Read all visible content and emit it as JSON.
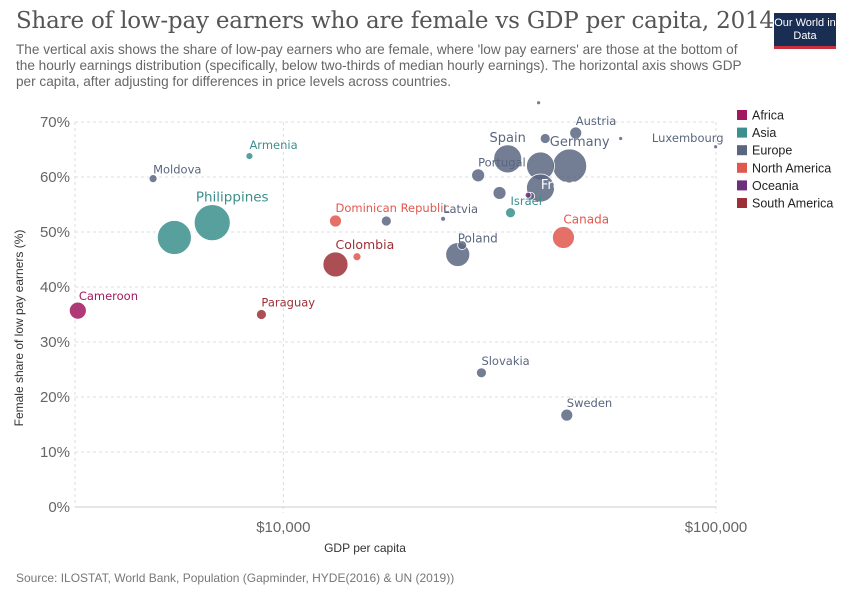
{
  "header": {
    "title": "Share of low-pay earners who are female vs GDP per capita, 2014",
    "subtitle": "The vertical axis shows the share of low-pay earners who are female, where 'low pay earners' are those at the bottom of the hourly earnings distribution (specifically, below two-thirds of median hourly earnings). The horizontal axis shows GDP per capita, after adjusting for differences in price levels across countries.",
    "logo": "Our World in Data"
  },
  "footer": {
    "source": "Source: ILOSTAT, World Bank, Population (Gapminder, HYDE(2016) & UN (2019))"
  },
  "colors": {
    "Africa": "#a2185f",
    "Asia": "#3b8f8c",
    "Europe": "#5a6680",
    "North America": "#e1574e",
    "Oceania": "#6b2f7c",
    "South America": "#9c3036",
    "logo_bg": "#1a2d53",
    "logo_accent": "#c8303e"
  },
  "chart_data": {
    "type": "scatter",
    "title": "Share of low-pay earners who are female vs GDP per capita, 2014",
    "xlabel": "GDP per capita",
    "ylabel": "Female share of low pay earners (%)",
    "x_scale": "log",
    "xlim": [
      3300,
      100000
    ],
    "ylim": [
      0,
      73
    ],
    "x_ticks": [
      {
        "value": 10000,
        "label": "$10,000"
      },
      {
        "value": 100000,
        "label": "$100,000"
      }
    ],
    "y_ticks": [
      {
        "value": 0,
        "label": "0%"
      },
      {
        "value": 10,
        "label": "10%"
      },
      {
        "value": 20,
        "label": "20%"
      },
      {
        "value": 30,
        "label": "30%"
      },
      {
        "value": 40,
        "label": "40%"
      },
      {
        "value": 50,
        "label": "50%"
      },
      {
        "value": 60,
        "label": "60%"
      },
      {
        "value": 70,
        "label": "70%"
      }
    ],
    "grid": true,
    "legend_position": "right",
    "legend": [
      "Africa",
      "Asia",
      "Europe",
      "North America",
      "Oceania",
      "South America"
    ],
    "points": [
      {
        "label": "Cameroon",
        "region": "Africa",
        "x": 3350,
        "y": 35.7,
        "size": 8.5
      },
      {
        "label": "Moldova",
        "region": "Europe",
        "x": 5000,
        "y": 59.7,
        "size": 4
      },
      {
        "label": "",
        "region": "Asia",
        "x": 5600,
        "y": 49.0,
        "size": 17
      },
      {
        "label": "Philippines",
        "region": "Asia",
        "x": 6850,
        "y": 51.7,
        "size": 18
      },
      {
        "label": "Armenia",
        "region": "Asia",
        "x": 8350,
        "y": 63.8,
        "size": 3.5
      },
      {
        "label": "Paraguay",
        "region": "South America",
        "x": 8900,
        "y": 35.0,
        "size": 5
      },
      {
        "label": "Dominican Republic",
        "region": "North America",
        "x": 13200,
        "y": 52.0,
        "size": 6
      },
      {
        "label": "Colombia",
        "region": "South America",
        "x": 13200,
        "y": 44.1,
        "size": 12.5
      },
      {
        "label": "",
        "region": "North America",
        "x": 14800,
        "y": 45.5,
        "size": 4
      },
      {
        "label": "",
        "region": "Europe",
        "x": 17300,
        "y": 52.0,
        "size": 5
      },
      {
        "label": "Latvia",
        "region": "Europe",
        "x": 23400,
        "y": 52.4,
        "size": 2.5
      },
      {
        "label": "",
        "region": "Europe",
        "x": 25900,
        "y": 47.6,
        "size": 4.5
      },
      {
        "label": "Poland",
        "region": "Europe",
        "x": 25300,
        "y": 45.9,
        "size": 12
      },
      {
        "label": "Portugal",
        "region": "Europe",
        "x": 28200,
        "y": 60.3,
        "size": 6.5
      },
      {
        "label": "Slovakia",
        "region": "Europe",
        "x": 28700,
        "y": 24.4,
        "size": 5
      },
      {
        "label": "",
        "region": "Europe",
        "x": 31600,
        "y": 57.1,
        "size": 6.5
      },
      {
        "label": "Spain",
        "region": "Europe",
        "x": 33000,
        "y": 63.3,
        "size": 14
      },
      {
        "label": "Israel",
        "region": "Asia",
        "x": 33500,
        "y": 53.5,
        "size": 5
      },
      {
        "label": "",
        "region": "Europe",
        "x": 37300,
        "y": 56.5,
        "size": 4
      },
      {
        "label": "",
        "region": "Oceania",
        "x": 36800,
        "y": 56.7,
        "size": 3
      },
      {
        "label": "",
        "region": "Europe",
        "x": 39300,
        "y": 62.0,
        "size": 14
      },
      {
        "label": "France",
        "region": "Europe",
        "x": 39300,
        "y": 58.0,
        "size": 14
      },
      {
        "label": "",
        "region": "Europe",
        "x": 40300,
        "y": 67.0,
        "size": 5
      },
      {
        "label": "",
        "region": "Europe",
        "x": 38900,
        "y": 73.5,
        "size": 2
      },
      {
        "label": "Austria",
        "region": "Europe",
        "x": 47400,
        "y": 68.0,
        "size": 6
      },
      {
        "label": "Germany",
        "region": "Europe",
        "x": 45900,
        "y": 62.0,
        "size": 17
      },
      {
        "label": "Canada",
        "region": "North America",
        "x": 44400,
        "y": 49.0,
        "size": 11
      },
      {
        "label": "Sweden",
        "region": "Europe",
        "x": 45200,
        "y": 16.7,
        "size": 6
      },
      {
        "label": "",
        "region": "Europe",
        "x": 60200,
        "y": 67.0,
        "size": 2
      },
      {
        "label": "Luxembourg",
        "region": "Europe",
        "x": 99800,
        "y": 65.5,
        "size": 2
      }
    ]
  }
}
